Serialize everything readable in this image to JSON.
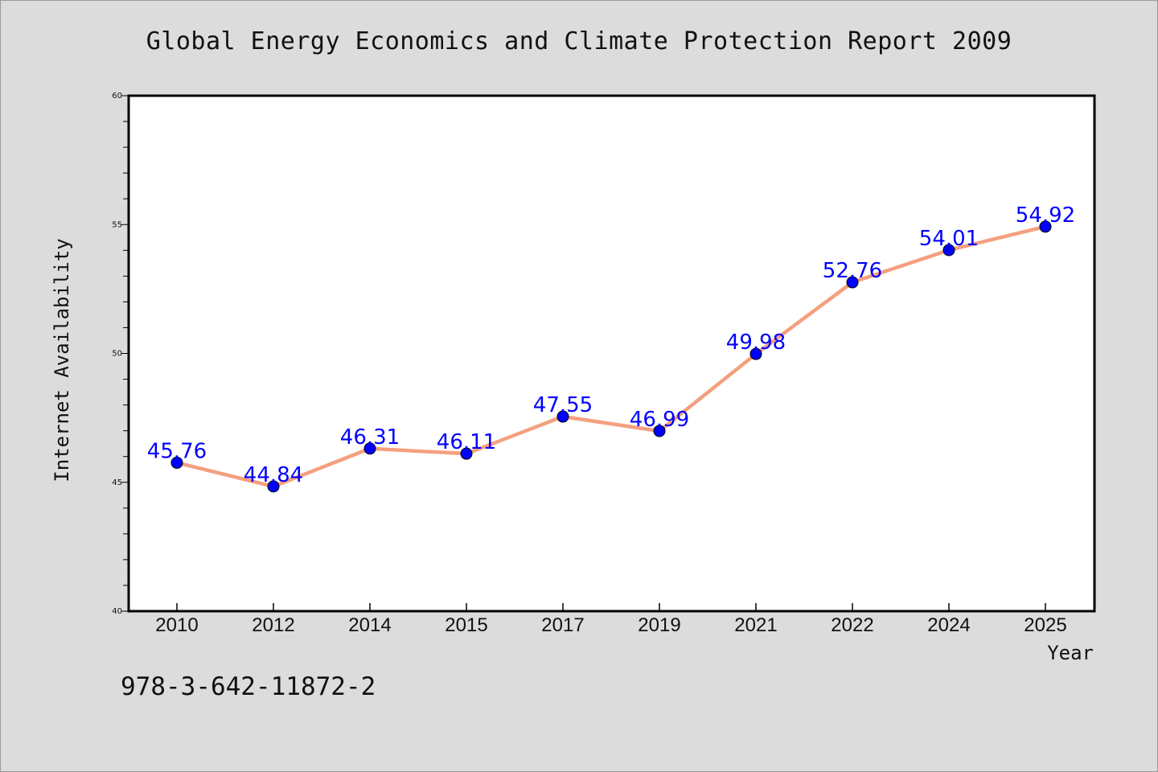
{
  "chart_data": {
    "type": "line",
    "title": "Global Energy Economics and Climate Protection Report 2009",
    "xlabel": "Year",
    "ylabel": "Internet Availability",
    "categories": [
      "2010",
      "2012",
      "2014",
      "2015",
      "2017",
      "2019",
      "2021",
      "2022",
      "2024",
      "2025"
    ],
    "series": [
      {
        "values": [
          45.76,
          44.84,
          46.31,
          46.11,
          47.55,
          46.99,
          49.98,
          52.76,
          54.01,
          54.92
        ],
        "line_color": "#f4a07f",
        "marker_color": "#0000ff",
        "label_color": "#0000ff"
      }
    ],
    "data_labels": [
      "45.76",
      "44.84",
      "46.31",
      "46.11",
      "47.55",
      "46.99",
      "49.98",
      "52.76",
      "54.01",
      "54.92"
    ],
    "ylim": [
      40,
      60
    ],
    "yticks": [
      40,
      45,
      50,
      55,
      60
    ],
    "grid": false,
    "legend": "none"
  },
  "footer": {
    "isbn": "978-3-642-11872-2"
  },
  "colors": {
    "background": "#dcdcdc",
    "plot_area": "#ffffff"
  }
}
